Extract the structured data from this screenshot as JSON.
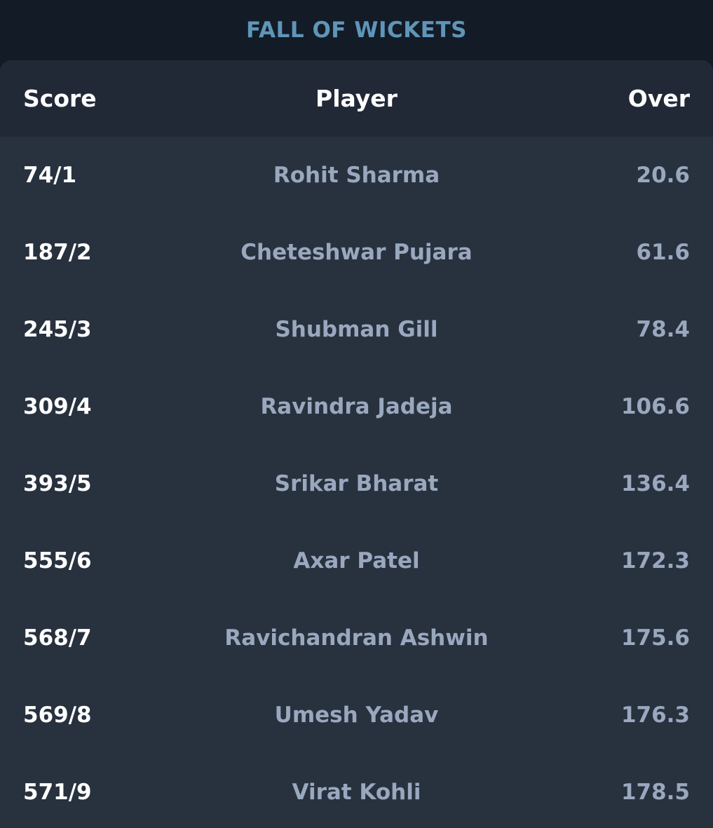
{
  "title": "FALL OF WICKETS",
  "table": {
    "headers": {
      "score": "Score",
      "player": "Player",
      "over": "Over"
    },
    "rows": [
      {
        "score": "74/1",
        "player": "Rohit Sharma",
        "over": "20.6"
      },
      {
        "score": "187/2",
        "player": "Cheteshwar Pujara",
        "over": "61.6"
      },
      {
        "score": "245/3",
        "player": "Shubman Gill",
        "over": "78.4"
      },
      {
        "score": "309/4",
        "player": "Ravindra Jadeja",
        "over": "106.6"
      },
      {
        "score": "393/5",
        "player": "Srikar Bharat",
        "over": "136.4"
      },
      {
        "score": "555/6",
        "player": "Axar Patel",
        "over": "172.3"
      },
      {
        "score": "568/7",
        "player": "Ravichandran Ashwin",
        "over": "175.6"
      },
      {
        "score": "569/8",
        "player": "Umesh Yadav",
        "over": "176.3"
      },
      {
        "score": "571/9",
        "player": "Virat Kohli",
        "over": "178.5"
      }
    ]
  },
  "colors": {
    "background": "#131b27",
    "card": "#28313e",
    "header": "#212937",
    "title": "#5f95b8",
    "primary_text": "#ffffff",
    "secondary_text": "#99a8be"
  }
}
